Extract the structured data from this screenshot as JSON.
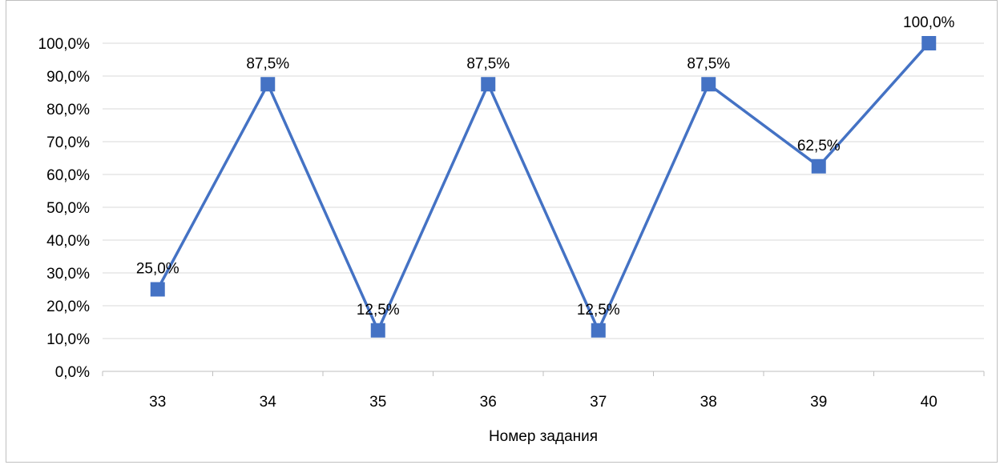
{
  "chart_data": {
    "type": "line",
    "categories": [
      "33",
      "34",
      "35",
      "36",
      "37",
      "38",
      "39",
      "40"
    ],
    "series": [
      {
        "values": [
          25.0,
          87.5,
          12.5,
          87.5,
          12.5,
          87.5,
          62.5,
          100.0
        ],
        "data_labels": [
          "25,0%",
          "87,5%",
          "12,5%",
          "87,5%",
          "12,5%",
          "87,5%",
          "62,5%",
          "100,0%"
        ]
      }
    ],
    "xlabel": "Номер задания",
    "ylabel": "",
    "ylim": [
      0,
      100
    ],
    "y_ticks": [
      0,
      10,
      20,
      30,
      40,
      50,
      60,
      70,
      80,
      90,
      100
    ],
    "y_tick_labels": [
      "0,0%",
      "10,0%",
      "20,0%",
      "30,0%",
      "40,0%",
      "50,0%",
      "60,0%",
      "70,0%",
      "80,0%",
      "90,0%",
      "100,0%"
    ],
    "grid": "horizontal",
    "marker": "square",
    "legend": "none",
    "colors": {
      "series": "#4472c4",
      "grid": "#d9d9d9",
      "axis": "#bfbfbf"
    }
  }
}
